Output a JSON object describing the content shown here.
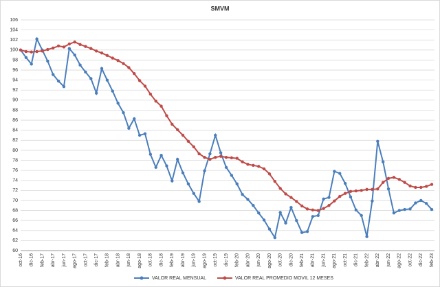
{
  "chart_data": {
    "type": "line",
    "title": "SMVM",
    "categories": [
      "oct-16",
      null,
      "dic-16",
      null,
      "feb-17",
      null,
      "abr-17",
      null,
      "jun-17",
      null,
      "ago-17",
      null,
      "oct-17",
      null,
      "dic-17",
      null,
      "feb-18",
      null,
      "abr-18",
      null,
      "jun-18",
      null,
      "ago-18",
      null,
      "oct-18",
      null,
      "dic-18",
      null,
      "feb-19",
      null,
      "abr-19",
      null,
      "jun-19",
      null,
      "ago-19",
      null,
      "oct-19",
      null,
      "dic-19",
      null,
      "feb-20",
      null,
      "abr-20",
      null,
      "jun-20",
      null,
      "ago-20",
      null,
      "oct-20",
      null,
      "dic-20",
      null,
      "feb-21",
      null,
      "abr-21",
      null,
      "jun-21",
      null,
      "ago-21",
      null,
      "oct-21",
      null,
      "dic-21",
      null,
      "feb-22",
      null,
      "abr-22",
      null,
      "jun-22",
      null,
      "ago-22",
      null,
      "oct-22",
      null,
      "dic-22",
      null,
      "feb-23"
    ],
    "series": [
      {
        "name": "VALOR REAL MENSUAL",
        "color": "#4a7ebb",
        "values": [
          100,
          98.5,
          97.2,
          102.2,
          100,
          97.8,
          95.1,
          93.8,
          92.7,
          100.3,
          99,
          97,
          95.6,
          94.3,
          91.4,
          96.3,
          94,
          91.8,
          89.4,
          87.5,
          84.4,
          86.3,
          83,
          83.3,
          79.2,
          76.6,
          79,
          76.9,
          73.9,
          78.2,
          75.5,
          73.3,
          71.4,
          69.8,
          75.9,
          79.3,
          83,
          79.5,
          76.6,
          75,
          73.3,
          71.2,
          70.2,
          69,
          67.5,
          66.1,
          64.3,
          62.6,
          67.6,
          65.5,
          68.6,
          66,
          63.6,
          63.8,
          66.8,
          67,
          70.3,
          70.6,
          75.8,
          75.4,
          73.4,
          70.7,
          68.1,
          67,
          62.8,
          69.9,
          81.8,
          77.7,
          72.3,
          67.5,
          68,
          68.2,
          68.3,
          69.5,
          70,
          69.4,
          68.2
        ]
      },
      {
        "name": "VALOR REAL PROMEDIO MOVIL 12 MESES",
        "color": "#be4b48",
        "values": [
          100,
          99.7,
          99.6,
          99.7,
          99.8,
          100.1,
          100.4,
          100.8,
          100.6,
          101.2,
          101.6,
          101.1,
          100.7,
          100.3,
          99.8,
          99.4,
          98.9,
          98.4,
          97.9,
          97.3,
          96.5,
          95.3,
          93.9,
          92.8,
          91.2,
          89.8,
          88.8,
          86.9,
          85.2,
          84.1,
          83,
          81.8,
          80.7,
          79.3,
          78.6,
          78.2,
          78.6,
          78.8,
          78.6,
          78.5,
          78.4,
          77.7,
          77.2,
          77,
          76.8,
          76.3,
          75.3,
          73.8,
          72.4,
          71.3,
          70.6,
          69.8,
          68.9,
          68.3,
          68.1,
          68,
          68.4,
          69,
          69.9,
          70.8,
          71.4,
          71.8,
          71.9,
          72,
          72.2,
          72.2,
          72.3,
          73.6,
          74.4,
          74.6,
          74.2,
          73.6,
          72.9,
          72.6,
          72.6,
          72.8,
          73.2
        ]
      }
    ],
    "ylim": [
      60,
      106
    ],
    "yticks": [
      60,
      62,
      64,
      66,
      68,
      70,
      72,
      74,
      76,
      78,
      80,
      82,
      84,
      86,
      88,
      90,
      92,
      94,
      96,
      98,
      100,
      102,
      104,
      106
    ],
    "grid": true,
    "legend": "bottom"
  }
}
